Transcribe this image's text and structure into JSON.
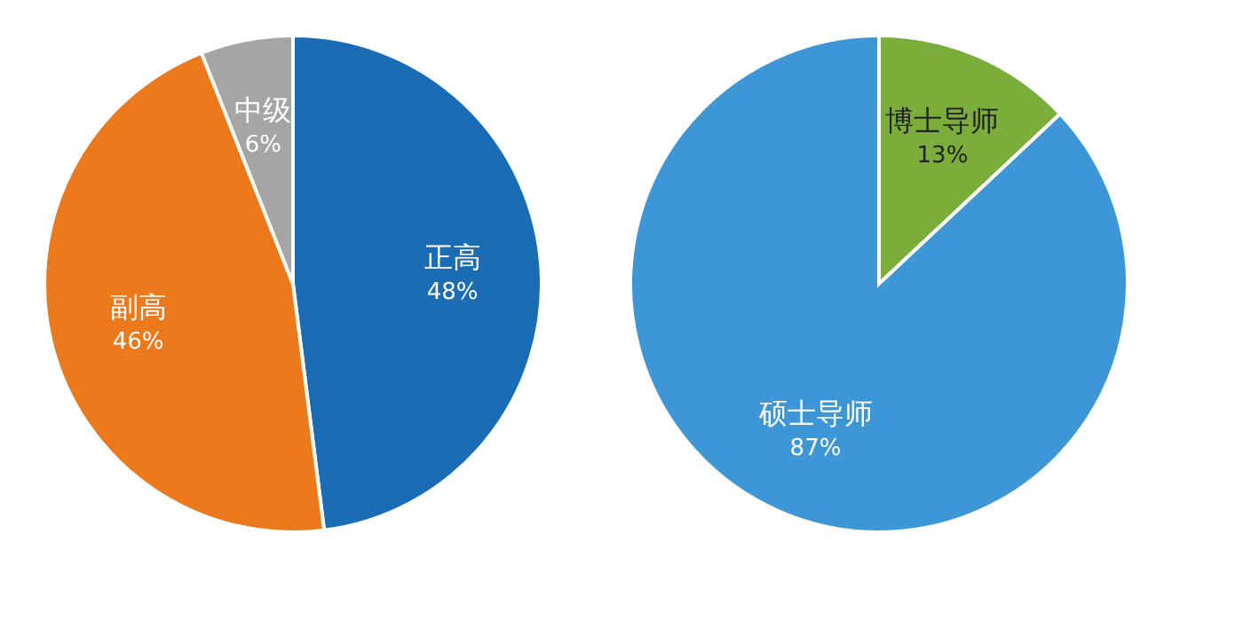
{
  "chart_data": [
    {
      "type": "pie",
      "categories": [
        "正高",
        "副高",
        "中级"
      ],
      "values": [
        48,
        46,
        6
      ],
      "colors": [
        "#1a6db5",
        "#ec7a1c",
        "#a5a5a5"
      ],
      "value_labels": [
        "48%",
        "46%",
        "6%"
      ],
      "legend": false
    },
    {
      "type": "pie",
      "categories": [
        "博士导师",
        "硕士导师"
      ],
      "values": [
        13,
        87
      ],
      "colors": [
        "#7aad3a",
        "#3d97d6"
      ],
      "value_labels": [
        "13%",
        "87%"
      ],
      "legend": false
    }
  ]
}
